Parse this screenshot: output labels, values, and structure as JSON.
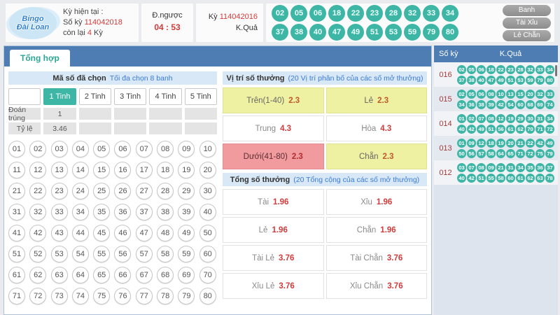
{
  "colors": {
    "teal": "#3db6a6",
    "header_blue": "#4d7db3",
    "section_header_bg": "#d9e8f6",
    "yellow": "#eef0a2",
    "pink": "#f19b9f",
    "odds_red": "#d23b3b",
    "accent_blue_text": "#3a7bd5"
  },
  "header": {
    "logo": {
      "line1": "Bingo",
      "line2": "Đài Loan"
    },
    "current": {
      "line1": "Kỳ hiện tại :",
      "line2_prefix": "Số kỳ",
      "line2_value": "114042018",
      "line3_prefix": "còn lại",
      "line3_value": "4",
      "line3_suffix": "Kỳ"
    },
    "countdown": {
      "label": "Đ.ngược",
      "value": "04 : 53"
    },
    "result": {
      "ky_prefix": "Kỳ",
      "ky_value": "114042016",
      "kq_label": "K.Quả"
    },
    "balls_row1": [
      "02",
      "05",
      "06",
      "18",
      "22",
      "23",
      "28",
      "32",
      "33",
      "34"
    ],
    "balls_row2": [
      "37",
      "38",
      "40",
      "47",
      "49",
      "51",
      "53",
      "59",
      "79",
      "80"
    ],
    "buttons": [
      {
        "id": "banh",
        "label": "Banh"
      },
      {
        "id": "tai-xiu",
        "label": "Tài Xỉu"
      },
      {
        "id": "le-chan",
        "label": "Lẻ Chẵn"
      }
    ]
  },
  "main_tab": "Tổng hợp",
  "selection": {
    "title": "Mã số đã chọn",
    "subtitle": "Tối đa chọn 8 banh",
    "tabs": [
      "1 Tinh",
      "2 Tinh",
      "3 Tinh",
      "4 Tinh",
      "5 Tinh"
    ],
    "active_tab": "1 Tinh",
    "stat_rows": [
      {
        "label": "Đoán trúng",
        "values": [
          "1",
          "",
          "",
          "",
          ""
        ]
      },
      {
        "label": "Tỷ lệ",
        "values": [
          "3.46",
          "",
          "",
          "",
          ""
        ]
      }
    ],
    "numbers": [
      "01",
      "02",
      "03",
      "04",
      "05",
      "06",
      "07",
      "08",
      "09",
      "10",
      "11",
      "12",
      "13",
      "14",
      "15",
      "16",
      "17",
      "18",
      "19",
      "20",
      "21",
      "22",
      "23",
      "24",
      "25",
      "26",
      "27",
      "28",
      "29",
      "30",
      "31",
      "32",
      "33",
      "34",
      "35",
      "36",
      "37",
      "38",
      "39",
      "40",
      "41",
      "42",
      "43",
      "44",
      "45",
      "46",
      "47",
      "48",
      "49",
      "50",
      "51",
      "52",
      "53",
      "54",
      "55",
      "56",
      "57",
      "58",
      "59",
      "60",
      "61",
      "62",
      "63",
      "64",
      "65",
      "66",
      "67",
      "68",
      "69",
      "70",
      "71",
      "72",
      "73",
      "74",
      "75",
      "76",
      "77",
      "78",
      "79",
      "80"
    ]
  },
  "position_bets": {
    "title": "Vị trí số thưởng",
    "subtitle": "(20 Vị trí phân bố của các số mở thưởng)",
    "cells": [
      {
        "label": "Trên(1-40)",
        "odds": "2.3",
        "variant": "yellow"
      },
      {
        "label": "Lẻ",
        "odds": "2.3",
        "variant": "yellow"
      },
      {
        "label": "Trung",
        "odds": "4.3",
        "variant": "white"
      },
      {
        "label": "Hòa",
        "odds": "4.3",
        "variant": "white"
      },
      {
        "label": "Dưới(41-80)",
        "odds": "2.3",
        "variant": "pink"
      },
      {
        "label": "Chẵn",
        "odds": "2.3",
        "variant": "yellow"
      }
    ]
  },
  "total_bets": {
    "title": "Tổng số thưởng",
    "subtitle": "(20 Tổng cộng của các số mở thưởng)",
    "cells": [
      {
        "label": "Tài",
        "odds": "1.96",
        "variant": "white"
      },
      {
        "label": "Xỉu",
        "odds": "1.96",
        "variant": "white"
      },
      {
        "label": "Lẻ",
        "odds": "1.96",
        "variant": "white"
      },
      {
        "label": "Chẵn",
        "odds": "1.96",
        "variant": "white"
      },
      {
        "label": "Tài Lẻ",
        "odds": "3.76",
        "variant": "white"
      },
      {
        "label": "Tài Chẵn",
        "odds": "3.76",
        "variant": "white"
      },
      {
        "label": "Xỉu Lẻ",
        "odds": "3.76",
        "variant": "white"
      },
      {
        "label": "Xỉu Chẵn",
        "odds": "3.76",
        "variant": "white"
      }
    ]
  },
  "history": {
    "col_period": "Số kỳ",
    "col_result": "K.Quả",
    "rows": [
      {
        "period": "016",
        "line1": [
          "02",
          "05",
          "06",
          "18",
          "22",
          "23",
          "28",
          "32",
          "33",
          "34"
        ],
        "line2": [
          "37",
          "38",
          "40",
          "47",
          "49",
          "51",
          "53",
          "59",
          "79",
          "80"
        ]
      },
      {
        "period": "015",
        "line1": [
          "02",
          "05",
          "06",
          "08",
          "10",
          "13",
          "15",
          "20",
          "32",
          "33"
        ],
        "line2": [
          "34",
          "36",
          "38",
          "39",
          "42",
          "54",
          "60",
          "68",
          "69",
          "74"
        ]
      },
      {
        "period": "014",
        "line1": [
          "01",
          "02",
          "07",
          "08",
          "12",
          "19",
          "29",
          "30",
          "31",
          "34"
        ],
        "line2": [
          "40",
          "42",
          "49",
          "51",
          "56",
          "61",
          "62",
          "70",
          "71",
          "72"
        ]
      },
      {
        "period": "013",
        "line1": [
          "01",
          "09",
          "12",
          "18",
          "19",
          "20",
          "21",
          "22",
          "42",
          "49"
        ],
        "line2": [
          "50",
          "56",
          "57",
          "58",
          "64",
          "65",
          "71",
          "72",
          "75",
          "79"
        ]
      },
      {
        "period": "012",
        "line1": [
          "03",
          "07",
          "08",
          "09",
          "21",
          "31",
          "34",
          "35",
          "36",
          "37"
        ],
        "line2": [
          "40",
          "42",
          "51",
          "55",
          "58",
          "60",
          "61",
          "62",
          "63",
          "78"
        ]
      }
    ]
  }
}
